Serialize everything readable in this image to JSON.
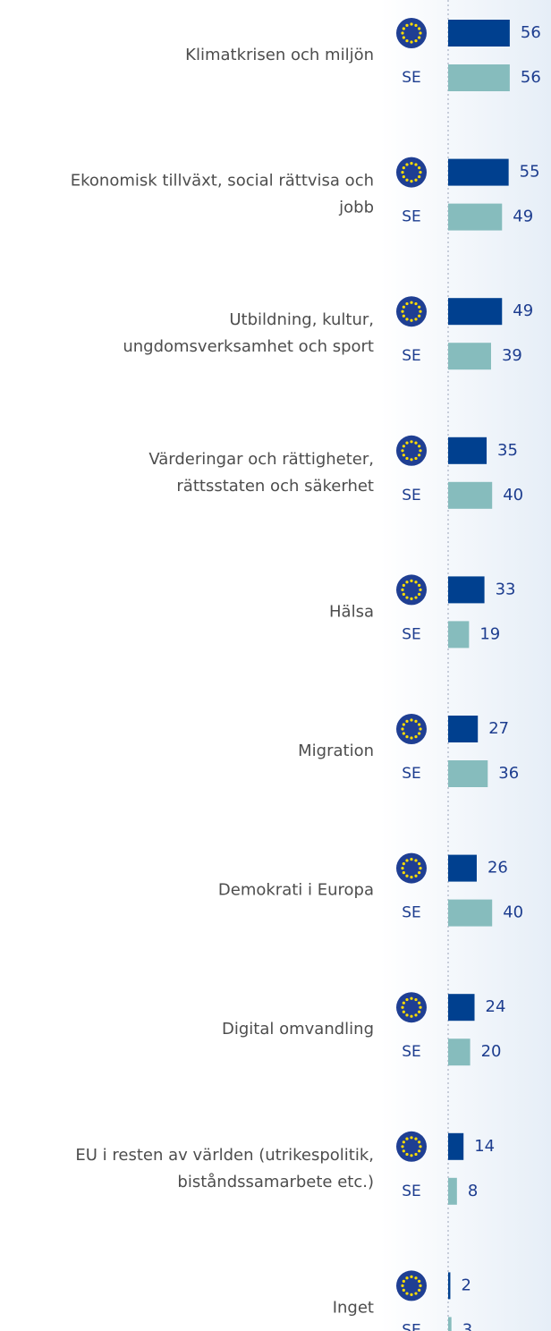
{
  "chart_data": {
    "type": "bar",
    "orientation": "horizontal",
    "categories": [
      "Klimatkrisen och miljön",
      "Ekonomisk tillväxt, social rättvisa och\njobb",
      "Utbildning, kultur,\nungdomsverksamhet och sport",
      "Värderingar och rättigheter,\nrättsstaten och säkerhet",
      "Hälsa",
      "Migration",
      "Demokrati i Europa",
      "Digital omvandling",
      "EU i resten av världen (utrikespolitik,\nbiståndssamarbete etc.)",
      "Inget"
    ],
    "series": [
      {
        "color": "#00408f",
        "values": [
          56,
          55,
          49,
          35,
          33,
          27,
          26,
          24,
          14,
          2
        ]
      },
      {
        "name": "SE",
        "color": "#86bcbd",
        "values": [
          56,
          49,
          39,
          40,
          19,
          36,
          40,
          20,
          8,
          3
        ]
      }
    ]
  }
}
